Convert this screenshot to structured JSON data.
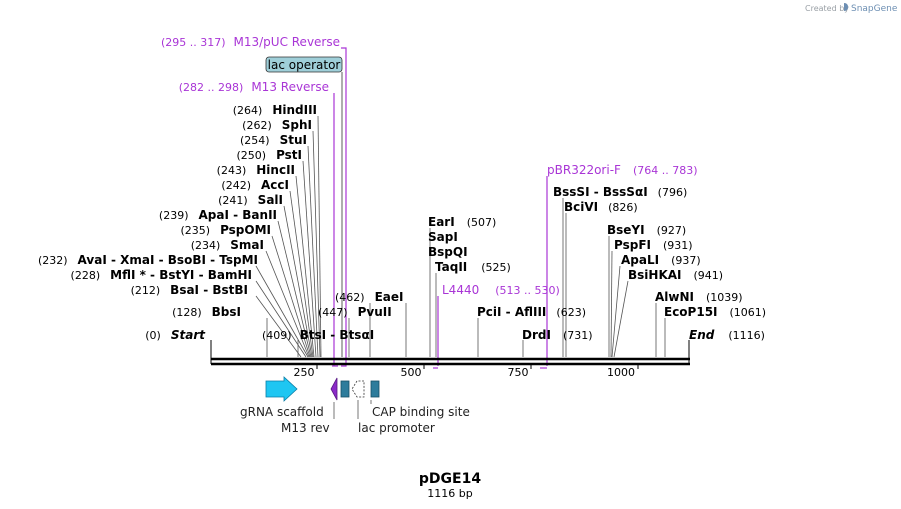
{
  "plasmid": {
    "name": "pDGE14",
    "length_label": "1116 bp"
  },
  "credit": {
    "prefix": "Created by",
    "brand": "SnapGene"
  },
  "enzymes": [
    {
      "pos": "(0)",
      "name": "Start",
      "style": "italic"
    },
    {
      "pos": "(128)",
      "name": "BbsI"
    },
    {
      "pos": "(212)",
      "name": "BsaI  -  BstBI"
    },
    {
      "pos": "(228)",
      "name": "MflI *  -  BstYI  -  BamHI"
    },
    {
      "pos": "(232)",
      "name": "AvaI  -  XmaI  -  BsoBI  -  TspMI"
    },
    {
      "pos": "(234)",
      "name": "SmaI"
    },
    {
      "pos": "(235)",
      "name": "PspOMI"
    },
    {
      "pos": "(239)",
      "name": "ApaI  -  BanII"
    },
    {
      "pos": "(241)",
      "name": "SalI"
    },
    {
      "pos": "(242)",
      "name": "AccI"
    },
    {
      "pos": "(243)",
      "name": "HincII"
    },
    {
      "pos": "(250)",
      "name": "PstI"
    },
    {
      "pos": "(254)",
      "name": "StuI"
    },
    {
      "pos": "(262)",
      "name": "SphI"
    },
    {
      "pos": "(264)",
      "name": "HindIII"
    },
    {
      "pos": "(409)",
      "name": "BtsI  -  BtsαI"
    },
    {
      "pos": "(447)",
      "name": "PvuII"
    },
    {
      "pos": "(462)",
      "name": "EaeI"
    },
    {
      "pos": "(507)",
      "name": "EarI"
    },
    {
      "pos": "",
      "name": "SapI"
    },
    {
      "pos": "",
      "name": "BspQI"
    },
    {
      "pos": "(525)",
      "name": "TaqII"
    },
    {
      "pos": "(623)",
      "name": "PciI  -  AflIII"
    },
    {
      "pos": "(731)",
      "name": "DrdI"
    },
    {
      "pos": "(796)",
      "name": "BssSI  -  BssSαI"
    },
    {
      "pos": "(826)",
      "name": "BciVI"
    },
    {
      "pos": "(927)",
      "name": "BseYI"
    },
    {
      "pos": "(931)",
      "name": "PspFI"
    },
    {
      "pos": "(937)",
      "name": "ApaLI"
    },
    {
      "pos": "(941)",
      "name": "BsiHKAI"
    },
    {
      "pos": "(1039)",
      "name": "AlwNI"
    },
    {
      "pos": "(1061)",
      "name": "EcoP15I"
    },
    {
      "pos": "(1116)",
      "name": "End",
      "style": "italic"
    }
  ],
  "primers": [
    {
      "range": "(295 .. 317)",
      "name": "M13/pUC Reverse"
    },
    {
      "range": "(282 .. 298)",
      "name": "M13 Reverse"
    },
    {
      "range": "(513 .. 530)",
      "name": "L4440"
    },
    {
      "range": "(764 .. 783)",
      "name": "pBR322ori-F"
    }
  ],
  "boxed_feature": {
    "label": "lac operator",
    "color": "#9fcfd9"
  },
  "ruler": {
    "ticks": [
      "250",
      "500",
      "750",
      "1000"
    ]
  },
  "features": [
    {
      "label": "gRNA scaffold",
      "color": "#1ec6f2"
    },
    {
      "label": "M13 rev",
      "color": "#8b2ac8"
    },
    {
      "label": "lac promoter",
      "color": "#ffffff"
    },
    {
      "label": "CAP binding site",
      "color": "#2e7c9c"
    }
  ]
}
